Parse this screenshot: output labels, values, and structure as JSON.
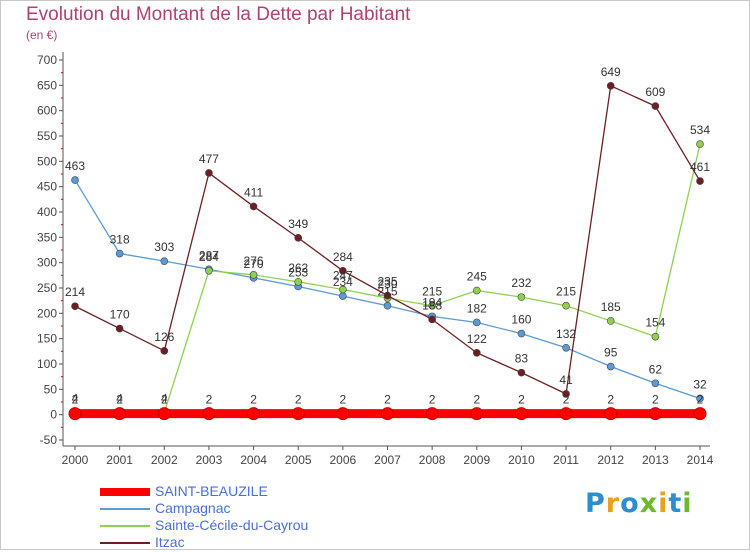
{
  "header": {
    "title": "Evolution du Montant de la Dette par Habitant",
    "unit": "(en €)"
  },
  "logo": {
    "letters": [
      "P",
      "r",
      "o",
      "x",
      "i",
      "t",
      "i"
    ],
    "colors": [
      "#2c8ecf",
      "#e8a21a",
      "#2c8ecf",
      "#6cba2b",
      "#e8a21a",
      "#2c8ecf",
      "#6cba2b"
    ]
  },
  "chart_data": {
    "type": "line",
    "x": [
      "2000",
      "2001",
      "2002",
      "2003",
      "2004",
      "2005",
      "2006",
      "2007",
      "2008",
      "2009",
      "2010",
      "2011",
      "2012",
      "2013",
      "2014"
    ],
    "ylim": [
      -50,
      700
    ],
    "yticks": [
      -50,
      0,
      50,
      100,
      150,
      200,
      250,
      300,
      350,
      400,
      450,
      500,
      550,
      600,
      650,
      700
    ],
    "grid": false,
    "legend_position": "bottom-left",
    "series": [
      {
        "name": "SAINT-BEAUZILE",
        "color": "#ff0000",
        "values": [
          2,
          2,
          2,
          2,
          2,
          2,
          2,
          2,
          2,
          2,
          2,
          2,
          2,
          2,
          2
        ],
        "labels": [
          "2",
          "2",
          "2",
          "2",
          "2",
          "2",
          "2",
          "2",
          "2",
          "2",
          "2",
          "2",
          "2",
          "2",
          "2"
        ]
      },
      {
        "name": "Campagnac",
        "color": "#5b9bd5",
        "values": [
          463,
          318,
          303,
          287,
          270,
          253,
          234,
          215,
          194,
          182,
          160,
          132,
          95,
          62,
          32
        ],
        "labels": [
          "463",
          "318",
          "303",
          "287",
          "270",
          "253",
          "234",
          "215",
          "194",
          "182",
          "160",
          "132",
          "95",
          "62",
          "32"
        ]
      },
      {
        "name": "Sainte-Cécile-du-Cayrou",
        "color": "#8fd14f",
        "values": [
          4,
          4,
          4,
          284,
          276,
          262,
          247,
          230,
          215,
          245,
          232,
          215,
          185,
          154,
          534
        ],
        "labels": [
          "4",
          "4",
          "4",
          "284",
          "276",
          "262",
          "247",
          "230",
          "215",
          "245",
          "232",
          "215",
          "185",
          "154",
          "534"
        ]
      },
      {
        "name": "Itzac",
        "color": "#6e1f24",
        "values": [
          214,
          170,
          126,
          477,
          411,
          349,
          284,
          235,
          188,
          122,
          83,
          41,
          649,
          609,
          461
        ],
        "labels": [
          "214",
          "170",
          "126",
          "477",
          "411",
          "349",
          "284",
          "235",
          "188",
          "122",
          "83",
          "41",
          "649",
          "609",
          "461"
        ]
      }
    ]
  }
}
